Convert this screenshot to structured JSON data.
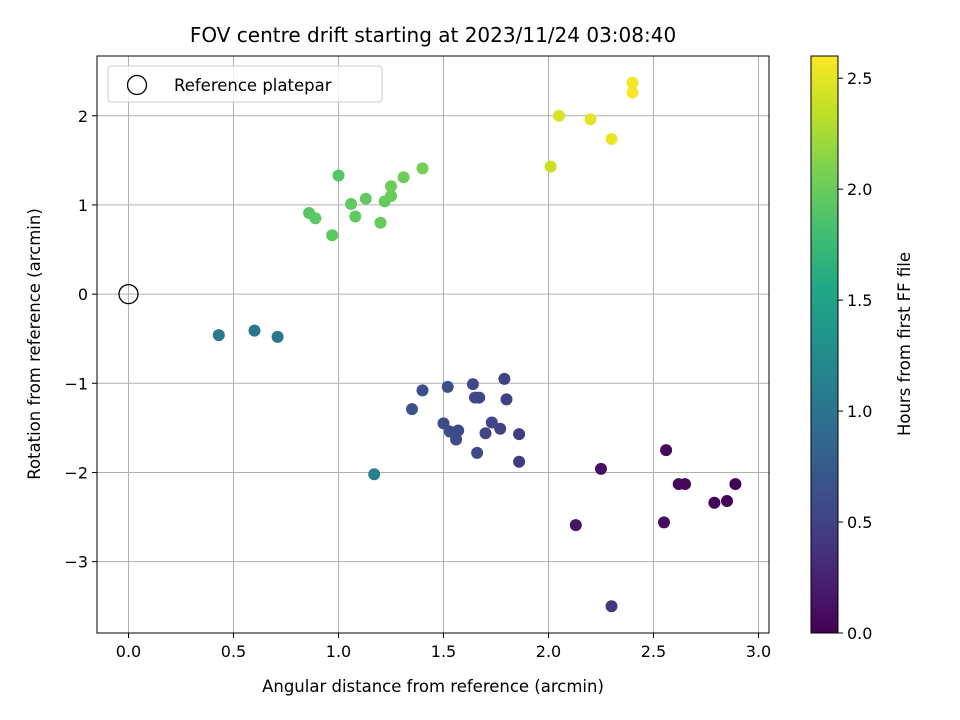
{
  "chart_data": {
    "type": "scatter",
    "title": "FOV centre drift starting at 2023/11/24 03:08:40",
    "xlabel": "Angular distance from reference (arcmin)",
    "ylabel": "Rotation from reference (arcmin)",
    "xlim": [
      -0.15,
      3.05
    ],
    "ylim": [
      -3.8,
      2.67
    ],
    "xticks": [
      0.0,
      0.5,
      1.0,
      1.5,
      2.0,
      2.5,
      3.0
    ],
    "xtick_labels": [
      "0.0",
      "0.5",
      "1.0",
      "1.5",
      "2.0",
      "2.5",
      "3.0"
    ],
    "yticks": [
      -3,
      -2,
      -1,
      0,
      1,
      2
    ],
    "ytick_labels": [
      "−3",
      "−2",
      "−1",
      "0",
      "1",
      "2"
    ],
    "grid": true,
    "legend": {
      "placement": "upper-left",
      "entries": [
        "Reference platepar"
      ]
    },
    "reference_point": {
      "name": "Reference platepar",
      "x": 0.0,
      "y": 0.0
    },
    "colorbar": {
      "label": "Hours from first FF file",
      "colormap": "viridis",
      "range": [
        0.0,
        2.6
      ],
      "ticks": [
        0.0,
        0.5,
        1.0,
        1.5,
        2.0,
        2.5
      ],
      "tick_labels": [
        "0.0",
        "0.5",
        "1.0",
        "1.5",
        "2.0",
        "2.5"
      ]
    },
    "points": [
      {
        "x": 2.89,
        "y": -2.13,
        "c": 0.0
      },
      {
        "x": 2.85,
        "y": -2.32,
        "c": 0.02
      },
      {
        "x": 2.79,
        "y": -2.34,
        "c": 0.03
      },
      {
        "x": 2.65,
        "y": -2.13,
        "c": 0.05
      },
      {
        "x": 2.62,
        "y": -2.13,
        "c": 0.06
      },
      {
        "x": 2.56,
        "y": -1.75,
        "c": 0.08
      },
      {
        "x": 2.55,
        "y": -2.56,
        "c": 0.1
      },
      {
        "x": 2.25,
        "y": -1.96,
        "c": 0.12
      },
      {
        "x": 2.13,
        "y": -2.59,
        "c": 0.15
      },
      {
        "x": 2.3,
        "y": -3.5,
        "c": 0.4
      },
      {
        "x": 1.86,
        "y": -1.88,
        "c": 0.45
      },
      {
        "x": 1.86,
        "y": -1.57,
        "c": 0.47
      },
      {
        "x": 1.8,
        "y": -1.18,
        "c": 0.49
      },
      {
        "x": 1.79,
        "y": -0.95,
        "c": 0.5
      },
      {
        "x": 1.77,
        "y": -1.51,
        "c": 0.51
      },
      {
        "x": 1.73,
        "y": -1.44,
        "c": 0.52
      },
      {
        "x": 1.7,
        "y": -1.56,
        "c": 0.53
      },
      {
        "x": 1.67,
        "y": -1.16,
        "c": 0.54
      },
      {
        "x": 1.65,
        "y": -1.16,
        "c": 0.55
      },
      {
        "x": 1.66,
        "y": -1.78,
        "c": 0.56
      },
      {
        "x": 1.64,
        "y": -1.01,
        "c": 0.57
      },
      {
        "x": 1.57,
        "y": -1.53,
        "c": 0.58
      },
      {
        "x": 1.56,
        "y": -1.63,
        "c": 0.59
      },
      {
        "x": 1.53,
        "y": -1.54,
        "c": 0.6
      },
      {
        "x": 1.52,
        "y": -1.04,
        "c": 0.61
      },
      {
        "x": 1.5,
        "y": -1.45,
        "c": 0.62
      },
      {
        "x": 1.4,
        "y": -1.08,
        "c": 0.64
      },
      {
        "x": 1.35,
        "y": -1.29,
        "c": 0.66
      },
      {
        "x": 0.6,
        "y": -0.41,
        "c": 1.0
      },
      {
        "x": 0.71,
        "y": -0.48,
        "c": 1.02
      },
      {
        "x": 0.43,
        "y": -0.46,
        "c": 1.05
      },
      {
        "x": 1.17,
        "y": -2.02,
        "c": 1.12
      },
      {
        "x": 1.0,
        "y": 1.33,
        "c": 1.9
      },
      {
        "x": 0.86,
        "y": 0.91,
        "c": 1.92
      },
      {
        "x": 0.89,
        "y": 0.85,
        "c": 1.93
      },
      {
        "x": 0.97,
        "y": 0.66,
        "c": 1.94
      },
      {
        "x": 1.06,
        "y": 1.01,
        "c": 1.95
      },
      {
        "x": 1.08,
        "y": 0.87,
        "c": 1.96
      },
      {
        "x": 1.13,
        "y": 1.07,
        "c": 1.97
      },
      {
        "x": 1.2,
        "y": 0.8,
        "c": 1.98
      },
      {
        "x": 1.22,
        "y": 1.04,
        "c": 1.99
      },
      {
        "x": 1.25,
        "y": 1.1,
        "c": 2.0
      },
      {
        "x": 1.25,
        "y": 1.21,
        "c": 2.01
      },
      {
        "x": 1.31,
        "y": 1.31,
        "c": 2.02
      },
      {
        "x": 1.4,
        "y": 1.41,
        "c": 2.05
      },
      {
        "x": 2.01,
        "y": 1.43,
        "c": 2.4
      },
      {
        "x": 2.05,
        "y": 2.0,
        "c": 2.45
      },
      {
        "x": 2.2,
        "y": 1.96,
        "c": 2.5
      },
      {
        "x": 2.3,
        "y": 1.74,
        "c": 2.52
      },
      {
        "x": 2.4,
        "y": 2.37,
        "c": 2.56
      },
      {
        "x": 2.4,
        "y": 2.26,
        "c": 2.58
      }
    ]
  }
}
